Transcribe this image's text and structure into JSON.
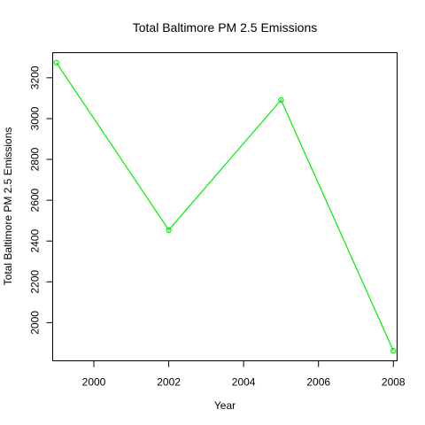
{
  "chart_data": {
    "type": "line",
    "title": "Total Baltimore PM 2.5 Emissions",
    "xlabel": "Year",
    "ylabel": "Total Baltimore PM 2.5 Emissions",
    "x": [
      1999,
      2002,
      2005,
      2008
    ],
    "series": [
      {
        "values": [
          3274,
          2454,
          3091,
          1862
        ],
        "color": "#00ee00"
      }
    ],
    "xticks": [
      2000,
      2002,
      2004,
      2006,
      2008
    ],
    "yticks": [
      2000,
      2200,
      2400,
      2600,
      2800,
      3000,
      3200
    ],
    "xlim": [
      1998.9,
      2008.1
    ],
    "ylim": [
      1813,
      3323
    ],
    "grid": false,
    "marker": "open-circle"
  }
}
